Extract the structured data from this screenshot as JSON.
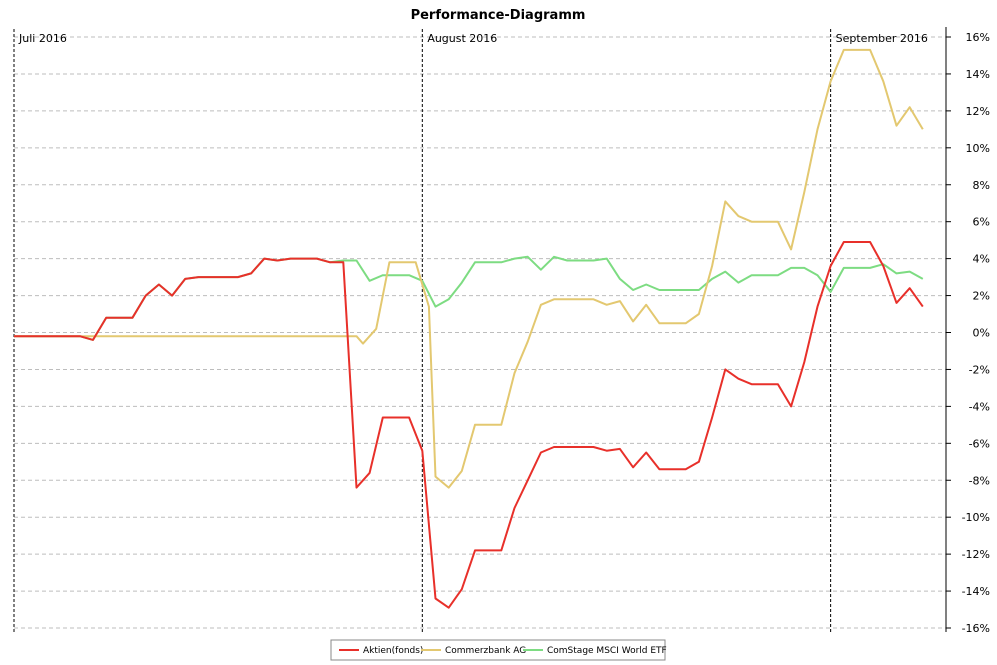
{
  "chart_data": {
    "type": "line",
    "title": "Performance-Diagramm",
    "ylim": [
      -16,
      16
    ],
    "ytick_step": 2,
    "ytick_suffix": "%",
    "grid": true,
    "legend_placement": "bottom-center",
    "months": [
      {
        "label": "Juli 2016",
        "x": 0
      },
      {
        "label": "August 2016",
        "x": 31
      },
      {
        "label": "September 2016",
        "x": 62
      }
    ],
    "x_range": [
      0,
      70
    ],
    "series": [
      {
        "name": "Aktien(fonds)",
        "color": "#e8302a",
        "points": [
          [
            0,
            -0.2
          ],
          [
            5,
            -0.2
          ],
          [
            6,
            -0.4
          ],
          [
            7,
            0.8
          ],
          [
            9,
            0.8
          ],
          [
            10,
            2.0
          ],
          [
            11,
            2.6
          ],
          [
            12,
            2.0
          ],
          [
            13,
            2.9
          ],
          [
            14,
            3.0
          ],
          [
            17,
            3.0
          ],
          [
            18,
            3.2
          ],
          [
            19,
            4.0
          ],
          [
            20,
            3.9
          ],
          [
            21,
            4.0
          ],
          [
            23,
            4.0
          ],
          [
            24,
            3.8
          ],
          [
            25,
            3.8
          ],
          [
            26,
            -8.4
          ],
          [
            27,
            -7.6
          ],
          [
            28,
            -4.6
          ],
          [
            30,
            -4.6
          ],
          [
            31,
            -6.4
          ],
          [
            32,
            -14.4
          ],
          [
            33,
            -14.9
          ],
          [
            34,
            -13.9
          ],
          [
            35,
            -11.8
          ],
          [
            37,
            -11.8
          ],
          [
            38,
            -9.5
          ],
          [
            39,
            -8.0
          ],
          [
            40,
            -6.5
          ],
          [
            41,
            -6.2
          ],
          [
            44,
            -6.2
          ],
          [
            45,
            -6.4
          ],
          [
            46,
            -6.3
          ],
          [
            47,
            -7.3
          ],
          [
            48,
            -6.5
          ],
          [
            49,
            -7.4
          ],
          [
            51,
            -7.4
          ],
          [
            52,
            -7.0
          ],
          [
            53,
            -4.6
          ],
          [
            54,
            -2.0
          ],
          [
            55,
            -2.5
          ],
          [
            56,
            -2.8
          ],
          [
            58,
            -2.8
          ],
          [
            59,
            -4.0
          ],
          [
            60,
            -1.6
          ],
          [
            61,
            1.4
          ],
          [
            62,
            3.6
          ],
          [
            63,
            4.9
          ],
          [
            65,
            4.9
          ],
          [
            66,
            3.6
          ],
          [
            67,
            1.6
          ],
          [
            68,
            2.4
          ],
          [
            69,
            1.4
          ]
        ]
      },
      {
        "name": "Commerzbank AG",
        "color": "#e3c870",
        "points": [
          [
            0,
            -0.2
          ],
          [
            5,
            -0.2
          ],
          [
            6,
            -0.2
          ],
          [
            26,
            -0.2
          ],
          [
            26.5,
            -0.6
          ],
          [
            27.5,
            0.2
          ],
          [
            28.5,
            3.8
          ],
          [
            30.5,
            3.8
          ],
          [
            31.5,
            1.4
          ],
          [
            32,
            -7.8
          ],
          [
            33,
            -8.4
          ],
          [
            34,
            -7.5
          ],
          [
            35,
            -5.0
          ],
          [
            37,
            -5.0
          ],
          [
            38,
            -2.2
          ],
          [
            39,
            -0.5
          ],
          [
            40,
            1.5
          ],
          [
            41,
            1.8
          ],
          [
            44,
            1.8
          ],
          [
            45,
            1.5
          ],
          [
            46,
            1.7
          ],
          [
            47,
            0.6
          ],
          [
            48,
            1.5
          ],
          [
            49,
            0.5
          ],
          [
            51,
            0.5
          ],
          [
            52,
            1.0
          ],
          [
            53,
            3.6
          ],
          [
            54,
            7.1
          ],
          [
            55,
            6.3
          ],
          [
            56,
            6.0
          ],
          [
            58,
            6.0
          ],
          [
            59,
            4.5
          ],
          [
            60,
            7.6
          ],
          [
            61,
            11.0
          ],
          [
            62,
            13.6
          ],
          [
            63,
            15.3
          ],
          [
            65,
            15.3
          ],
          [
            66,
            13.6
          ],
          [
            67,
            11.2
          ],
          [
            68,
            12.2
          ],
          [
            69,
            11.0
          ]
        ]
      },
      {
        "name": "ComStage MSCI World ETF",
        "color": "#7ddc82",
        "points": [
          [
            0,
            -0.2
          ],
          [
            5,
            -0.2
          ],
          [
            6,
            -0.4
          ],
          [
            7,
            0.8
          ],
          [
            9,
            0.8
          ],
          [
            10,
            2.0
          ],
          [
            11,
            2.6
          ],
          [
            12,
            2.0
          ],
          [
            13,
            2.9
          ],
          [
            14,
            3.0
          ],
          [
            17,
            3.0
          ],
          [
            18,
            3.2
          ],
          [
            19,
            4.0
          ],
          [
            20,
            3.9
          ],
          [
            21,
            4.0
          ],
          [
            23,
            4.0
          ],
          [
            24,
            3.8
          ],
          [
            25,
            3.9
          ],
          [
            26,
            3.9
          ],
          [
            27,
            2.8
          ],
          [
            28,
            3.1
          ],
          [
            30,
            3.1
          ],
          [
            31,
            2.8
          ],
          [
            32,
            1.4
          ],
          [
            33,
            1.8
          ],
          [
            34,
            2.7
          ],
          [
            35,
            3.8
          ],
          [
            37,
            3.8
          ],
          [
            38,
            4.0
          ],
          [
            39,
            4.1
          ],
          [
            40,
            3.4
          ],
          [
            41,
            4.1
          ],
          [
            42,
            3.9
          ],
          [
            44,
            3.9
          ],
          [
            45,
            4.0
          ],
          [
            46,
            2.9
          ],
          [
            47,
            2.3
          ],
          [
            48,
            2.6
          ],
          [
            49,
            2.3
          ],
          [
            52,
            2.3
          ],
          [
            53,
            2.9
          ],
          [
            54,
            3.3
          ],
          [
            55,
            2.7
          ],
          [
            56,
            3.1
          ],
          [
            58,
            3.1
          ],
          [
            59,
            3.5
          ],
          [
            60,
            3.5
          ],
          [
            61,
            3.1
          ],
          [
            62,
            2.2
          ],
          [
            63,
            3.5
          ],
          [
            65,
            3.5
          ],
          [
            66,
            3.7
          ],
          [
            67,
            3.2
          ],
          [
            68,
            3.3
          ],
          [
            69,
            2.9
          ]
        ]
      }
    ]
  }
}
